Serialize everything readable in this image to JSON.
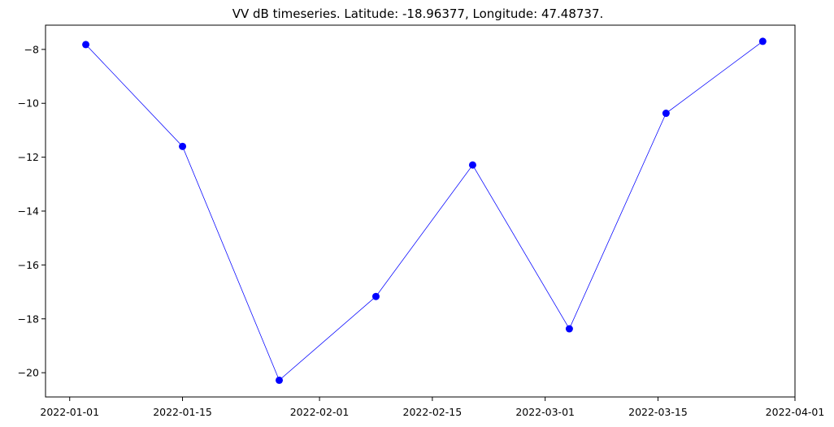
{
  "chart_data": {
    "type": "line",
    "title": "VV dB timeseries. Latitude: -18.96377, Longitude: 47.48737.",
    "xlabel": "",
    "ylabel": "",
    "x": [
      "2022-01-03",
      "2022-01-15",
      "2022-01-27",
      "2022-02-08",
      "2022-02-20",
      "2022-03-04",
      "2022-03-16",
      "2022-03-28"
    ],
    "series": [
      {
        "values": [
          -7.82,
          -11.6,
          -20.28,
          -17.17,
          -12.29,
          -18.37,
          -10.37,
          -7.7
        ],
        "color": "#0000ff",
        "marker": "circle"
      }
    ],
    "xlim": [
      "2021-12-29",
      "2022-04-01"
    ],
    "ylim": [
      -20.9,
      -7.1
    ],
    "xticks": [
      "2022-01-01",
      "2022-01-15",
      "2022-02-01",
      "2022-02-15",
      "2022-03-01",
      "2022-03-15",
      "2022-04-01"
    ],
    "yticks": [
      -8,
      -10,
      -12,
      -14,
      -16,
      -18,
      -20
    ],
    "grid": false,
    "legend": "none"
  }
}
